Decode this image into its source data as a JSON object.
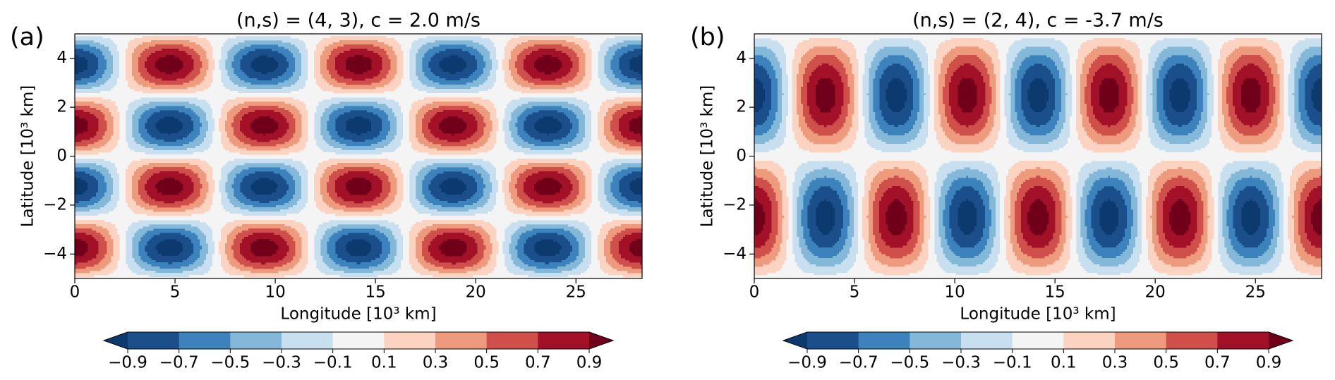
{
  "chart_data": [
    {
      "type": "contour",
      "panel_label": "(a)",
      "title": "(n,s) = (4, 3), c = 2.0 m/s",
      "xlabel": "Longitude [10³ km]",
      "ylabel": "Latitude [10³ km]",
      "zonal_wavenumber": 3,
      "meridional_mode": 4,
      "xlim": [
        0,
        28.3
      ],
      "ylim": [
        -5,
        5
      ],
      "xticks": [
        0,
        5,
        10,
        15,
        20,
        25
      ],
      "yticks": [
        {
          "value": -4,
          "label": "−4"
        },
        {
          "value": -2,
          "label": "−2"
        },
        0,
        2,
        4
      ],
      "levels": [
        {
          "value": -0.9,
          "label": "−0.9"
        },
        {
          "value": -0.7,
          "label": "−0.7"
        },
        {
          "value": -0.5,
          "label": "−0.5"
        },
        {
          "value": -0.3,
          "label": "−0.3"
        },
        {
          "value": -0.1,
          "label": "−0.1"
        },
        0.1,
        0.3,
        0.5,
        0.7,
        0.9
      ],
      "colors": [
        "#0d3a6e",
        "#1a4f8c",
        "#3c83bd",
        "#84b8d9",
        "#c7dfee",
        "#f4f4f4",
        "#fbd3c0",
        "#ee9a7d",
        "#cf4f4b",
        "#a21127",
        "#70001a"
      ],
      "colorbar_extend": "both"
    },
    {
      "type": "contour",
      "panel_label": "(b)",
      "title": "(n,s) = (2, 4), c = -3.7 m/s",
      "xlabel": "Longitude [10³ km]",
      "ylabel": "Latitude [10³ km]",
      "zonal_wavenumber": 4,
      "meridional_mode": 2,
      "xlim": [
        0,
        28.3
      ],
      "ylim": [
        -5,
        5
      ],
      "xticks": [
        0,
        5,
        10,
        15,
        20,
        25
      ],
      "yticks": [
        {
          "value": -4,
          "label": "−4"
        },
        {
          "value": -2,
          "label": "−2"
        },
        0,
        2,
        4
      ],
      "levels": [
        {
          "value": -0.9,
          "label": "−0.9"
        },
        {
          "value": -0.7,
          "label": "−0.7"
        },
        {
          "value": -0.5,
          "label": "−0.5"
        },
        {
          "value": -0.3,
          "label": "−0.3"
        },
        {
          "value": -0.1,
          "label": "−0.1"
        },
        0.1,
        0.3,
        0.5,
        0.7,
        0.9
      ],
      "colors": [
        "#0d3a6e",
        "#1a4f8c",
        "#3c83bd",
        "#84b8d9",
        "#c7dfee",
        "#f4f4f4",
        "#fbd3c0",
        "#ee9a7d",
        "#cf4f4b",
        "#a21127",
        "#70001a"
      ],
      "colorbar_extend": "both"
    }
  ]
}
